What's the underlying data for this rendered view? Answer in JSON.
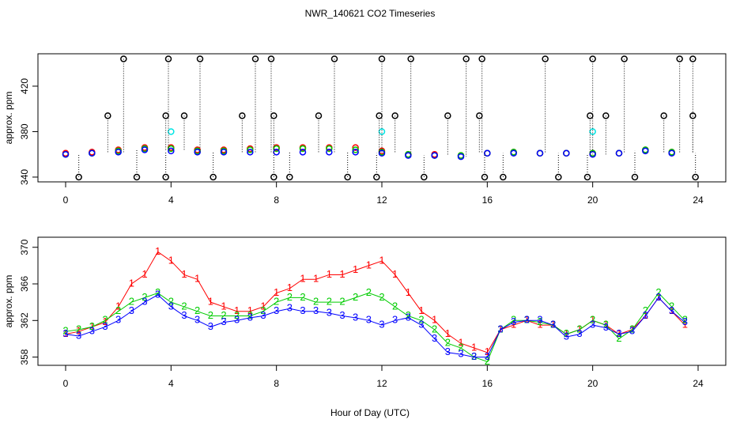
{
  "title": "NWR_140621  CO2 Timeseries",
  "x_label": "Hour of Day (UTC)",
  "chart_data": [
    {
      "type": "scatter",
      "y_label": "approx. ppm",
      "xlim": [
        -1.05,
        25.05
      ],
      "xticks": [
        0,
        4,
        8,
        12,
        16,
        20,
        24
      ],
      "ylim": [
        335.8,
        448.5
      ],
      "yticks": [
        340,
        380,
        420
      ],
      "x": [
        0,
        1,
        2,
        3,
        4,
        5,
        6,
        7,
        8,
        9,
        10,
        11,
        12,
        13,
        14,
        15,
        16,
        17,
        18,
        19,
        20,
        21,
        22,
        23
      ],
      "series": [
        {
          "color": "#ff0000",
          "values": [
            361,
            362,
            364,
            366,
            366,
            364,
            364,
            365,
            366,
            366,
            366,
            366,
            363,
            360,
            360,
            359,
            361,
            362,
            361,
            361,
            361,
            361,
            364,
            362
          ]
        },
        {
          "color": "#00cc00",
          "values": [
            360,
            361,
            363,
            365,
            365,
            363,
            363,
            364,
            365,
            365,
            365,
            364,
            362,
            360,
            359,
            359,
            361,
            362,
            361,
            361,
            361,
            361,
            364,
            362
          ]
        },
        {
          "color": "#0000ff",
          "values": [
            360,
            361,
            362,
            364,
            363,
            362,
            362,
            362,
            362,
            362,
            362,
            362,
            361,
            359,
            359,
            358,
            361,
            361,
            361,
            361,
            360,
            361,
            363,
            361
          ]
        },
        {
          "color": "#00e5e5",
          "x": [
            4.0,
            12.0,
            20.0
          ],
          "values": [
            380,
            380,
            380
          ]
        },
        {
          "color": "#000000",
          "dotted_stems": true,
          "x": [
            2.2,
            3.9,
            5.1,
            7.2,
            7.8,
            10.2,
            12.0,
            13.1,
            15.2,
            15.8,
            18.2,
            20.0,
            21.2,
            23.3,
            23.8,
            1.6,
            3.8,
            4.5,
            6.7,
            7.9,
            9.6,
            11.9,
            12.5,
            14.5,
            15.7,
            19.9,
            20.5,
            22.7,
            23.8,
            0.5,
            2.7,
            3.8,
            5.6,
            7.9,
            8.5,
            10.7,
            11.8,
            13.6,
            15.9,
            16.6,
            18.7,
            19.8,
            21.6,
            23.9
          ],
          "values": [
            444,
            444,
            444,
            444,
            444,
            444,
            444,
            444,
            444,
            444,
            444,
            444,
            444,
            444,
            444,
            394,
            394,
            394,
            394,
            394,
            394,
            394,
            394,
            394,
            394,
            394,
            394,
            394,
            394,
            340,
            340,
            340,
            340,
            340,
            340,
            340,
            340,
            340,
            340,
            340,
            340,
            340,
            340,
            340
          ]
        }
      ]
    },
    {
      "type": "scatter",
      "y_label": "approx. ppm",
      "lines": true,
      "xlim": [
        -1.05,
        25.05
      ],
      "xticks": [
        0,
        4,
        8,
        12,
        16,
        20,
        24
      ],
      "ylim": [
        357.1,
        371.1
      ],
      "yticks": [
        358,
        362,
        366,
        370
      ],
      "x": [
        0,
        0.5,
        1,
        1.5,
        2,
        2.5,
        3,
        3.5,
        4,
        4.5,
        5,
        5.5,
        6,
        6.5,
        7,
        7.5,
        8,
        8.5,
        9,
        9.5,
        10,
        10.5,
        11,
        11.5,
        12,
        12.5,
        13,
        13.5,
        14,
        14.5,
        15,
        15.5,
        16,
        16.5,
        17,
        17.5,
        18,
        18.5,
        19,
        19.5,
        20,
        20.5,
        21,
        21.5,
        22,
        22.5,
        23,
        23.5
      ],
      "series": [
        {
          "symbol": "1",
          "color": "#ff0000",
          "values": [
            360.5,
            360.8,
            361.3,
            361.8,
            363.5,
            366,
            367,
            369.5,
            368.5,
            367,
            366.5,
            364,
            363.5,
            363,
            363,
            363.5,
            365,
            365.5,
            366.5,
            366.5,
            367,
            367,
            367.5,
            368,
            368.5,
            367,
            365,
            363,
            362,
            360.5,
            359.5,
            359,
            358.5,
            361,
            361.5,
            362,
            361.5,
            361.5,
            360.5,
            361,
            362,
            361.5,
            360.5,
            361,
            362.5,
            364.5,
            363,
            361.5
          ]
        },
        {
          "symbol": "2",
          "color": "#00cc00",
          "values": [
            360.8,
            361,
            361.3,
            362,
            363,
            364,
            364.5,
            365,
            364,
            363.5,
            363,
            362.5,
            362.5,
            362.5,
            362.5,
            363,
            364,
            364.5,
            364.5,
            364,
            364,
            364,
            364.5,
            365,
            364.5,
            363.5,
            362.5,
            362,
            361,
            359.5,
            359,
            358,
            357.5,
            361,
            362,
            362,
            361.8,
            361.5,
            360.5,
            361,
            362,
            361.5,
            360,
            361,
            363,
            365,
            363.5,
            362
          ]
        },
        {
          "symbol": "3",
          "color": "#0000ff",
          "values": [
            360.5,
            360.3,
            360.8,
            361.3,
            362,
            363,
            364,
            364.8,
            363.5,
            362.5,
            362,
            361.3,
            361.8,
            362,
            362.3,
            362.5,
            363,
            363.3,
            363,
            363,
            362.8,
            362.5,
            362.3,
            362,
            361.5,
            362,
            362.3,
            361.5,
            360,
            358.5,
            358.3,
            358,
            358,
            361,
            361.8,
            362,
            362,
            361.5,
            360.2,
            360.5,
            361.5,
            361.2,
            360.5,
            360.8,
            362.5,
            364.5,
            363,
            361.8
          ]
        }
      ]
    }
  ]
}
